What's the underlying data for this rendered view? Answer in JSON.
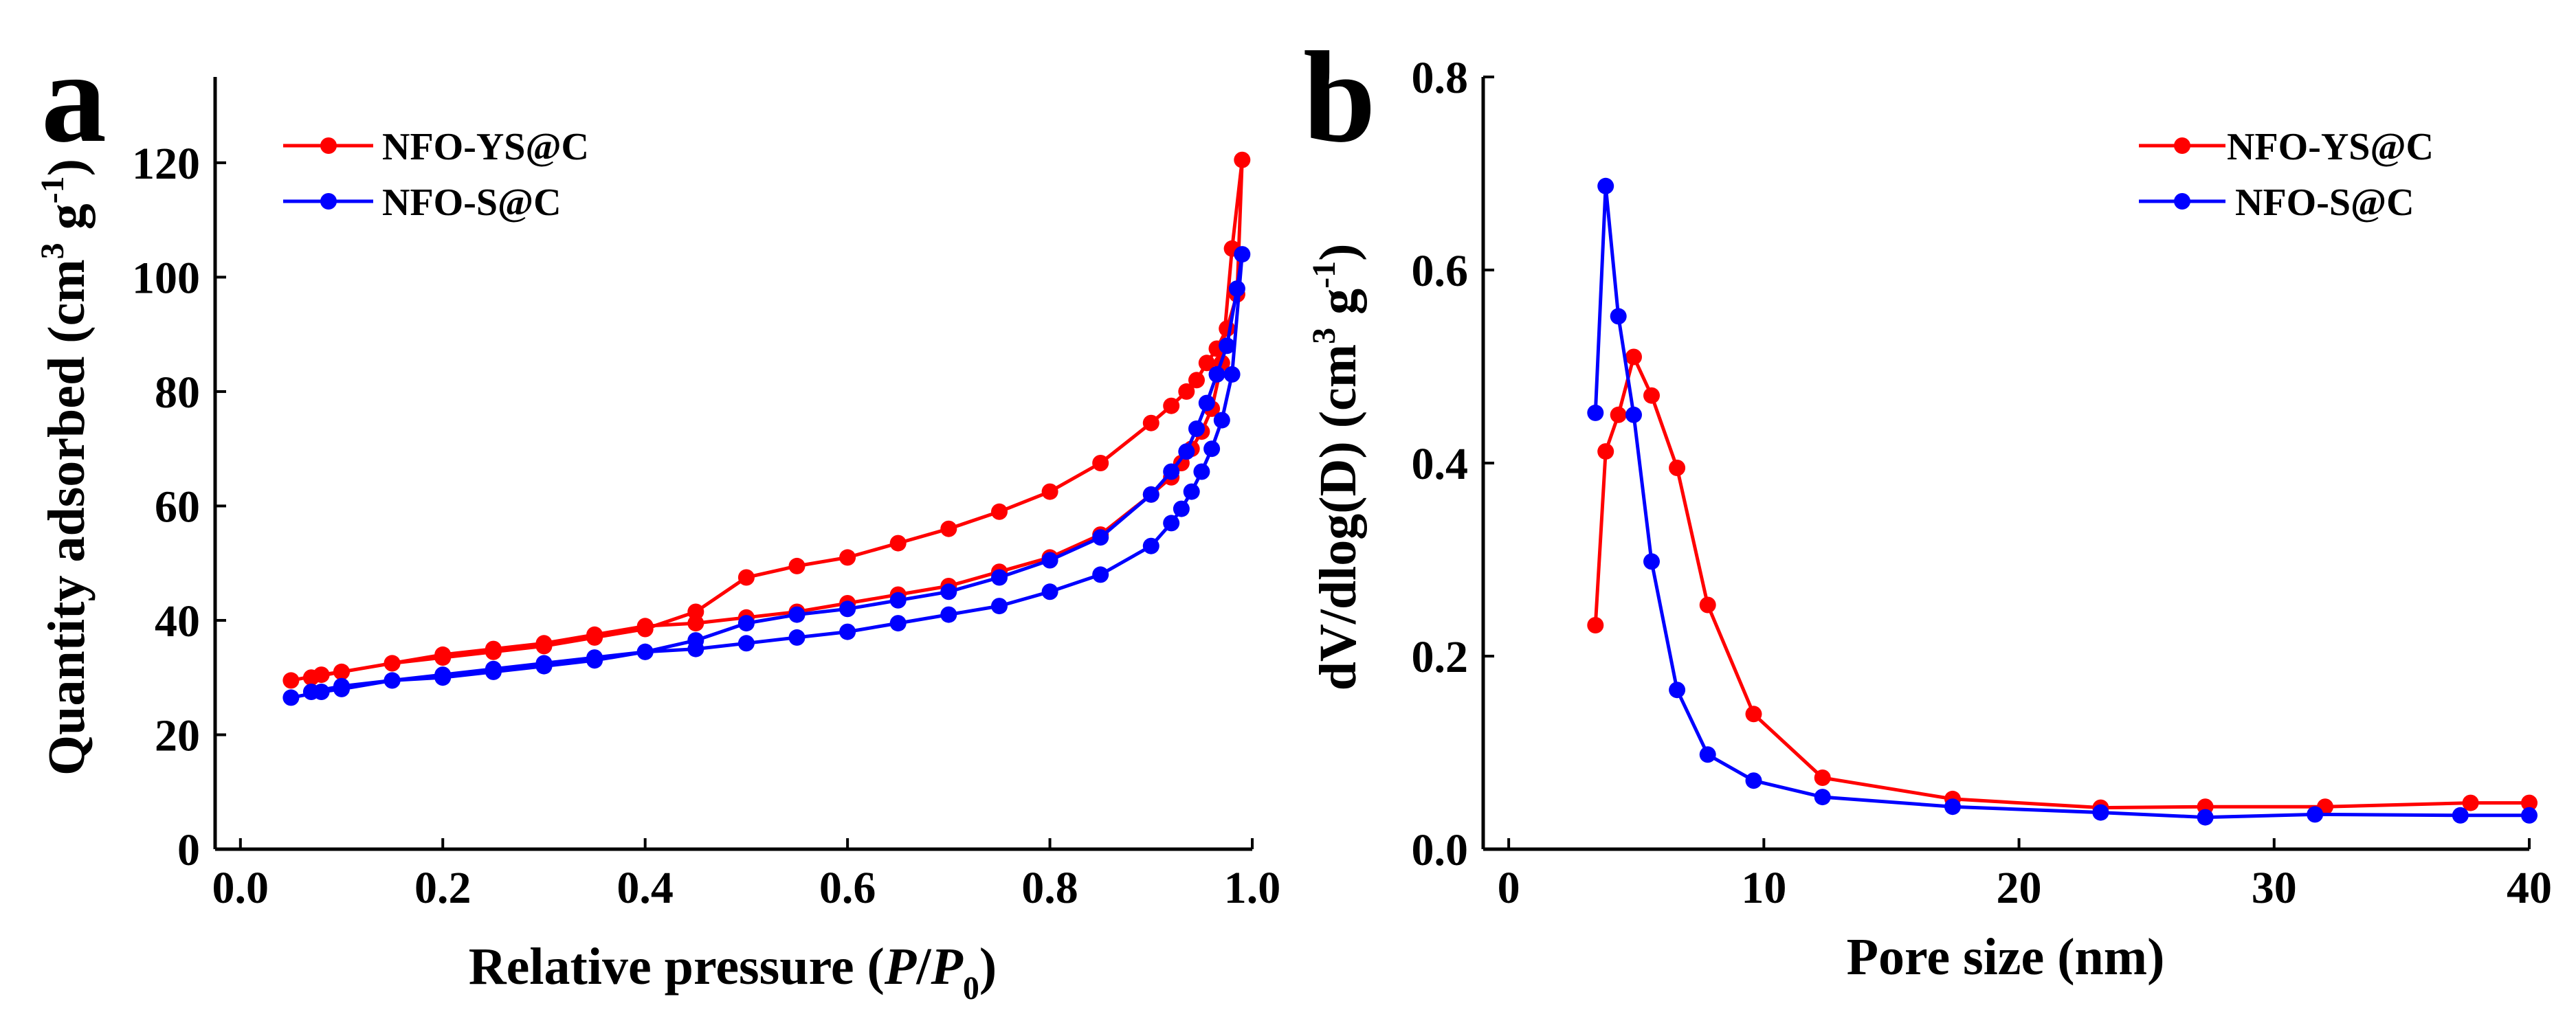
{
  "chart_data": [
    {
      "panel_label": "a",
      "type": "line",
      "xlabel": "Relative pressure (P/P0)",
      "xlabel_parts": {
        "pre": "Relative pressure (",
        "P": "P",
        "slash": "/",
        "P2": "P",
        "sub": "0",
        "post": ")"
      },
      "ylabel": "Quantity adsorbed (cm3 g-1)",
      "ylabel_parts": {
        "main": "Quantity adsorbed (cm",
        "sup1": "3",
        "mid": " g",
        "sup2": "-1",
        "post": ")"
      },
      "xlim": [
        -0.025,
        1.0
      ],
      "ylim": [
        0,
        135
      ],
      "xticks": [
        "0.0",
        "0.2",
        "0.4",
        "0.6",
        "0.8",
        "1.0"
      ],
      "yticks": [
        "0",
        "20",
        "40",
        "60",
        "80",
        "100",
        "120"
      ],
      "legend_position": "top-left",
      "series": [
        {
          "name": "NFO-YS@C",
          "color": "#ff0000",
          "x": [
            0.05,
            0.08,
            0.1,
            0.15,
            0.2,
            0.25,
            0.3,
            0.35,
            0.4,
            0.45,
            0.5,
            0.55,
            0.6,
            0.65,
            0.7,
            0.75,
            0.8,
            0.85,
            0.9,
            0.92,
            0.93,
            0.94,
            0.95,
            0.96,
            0.97,
            0.98,
            0.99,
            0.985,
            0.975,
            0.965,
            0.955,
            0.945,
            0.935,
            0.92,
            0.9,
            0.85,
            0.8,
            0.75,
            0.7,
            0.65,
            0.6,
            0.55,
            0.5,
            0.45,
            0.4,
            0.35,
            0.3,
            0.25,
            0.2,
            0.15,
            0.1,
            0.07
          ],
          "y": [
            29.5,
            30.5,
            31.0,
            32.5,
            34.0,
            35.0,
            36.0,
            37.5,
            39.0,
            39.5,
            40.5,
            41.5,
            43.0,
            44.5,
            46.0,
            48.5,
            51.0,
            55.0,
            62.0,
            65.0,
            67.5,
            70.0,
            73.0,
            77.0,
            85.0,
            105.0,
            120.5,
            97.0,
            91.0,
            87.5,
            85.0,
            82.0,
            80.0,
            77.5,
            74.5,
            67.5,
            62.5,
            59.0,
            56.0,
            53.5,
            51.0,
            49.5,
            47.5,
            41.5,
            38.5,
            37.0,
            35.5,
            34.5,
            33.5,
            32.5,
            31.0,
            30.0
          ]
        },
        {
          "name": "NFO-S@C",
          "color": "#0000ff",
          "x": [
            0.05,
            0.08,
            0.1,
            0.15,
            0.2,
            0.25,
            0.3,
            0.35,
            0.4,
            0.45,
            0.5,
            0.55,
            0.6,
            0.65,
            0.7,
            0.75,
            0.8,
            0.85,
            0.9,
            0.92,
            0.93,
            0.94,
            0.95,
            0.96,
            0.97,
            0.98,
            0.99,
            0.985,
            0.975,
            0.965,
            0.955,
            0.945,
            0.935,
            0.92,
            0.9,
            0.85,
            0.8,
            0.75,
            0.7,
            0.65,
            0.6,
            0.55,
            0.5,
            0.45,
            0.4,
            0.35,
            0.3,
            0.25,
            0.2,
            0.15,
            0.1,
            0.07
          ],
          "y": [
            26.5,
            27.5,
            28.0,
            29.5,
            30.5,
            31.5,
            32.5,
            33.5,
            34.5,
            35.0,
            36.0,
            37.0,
            38.0,
            39.5,
            41.0,
            42.5,
            45.0,
            48.0,
            53.0,
            57.0,
            59.5,
            62.5,
            66.0,
            70.0,
            75.0,
            83.0,
            104.0,
            98.0,
            88.0,
            83.0,
            78.0,
            73.5,
            69.5,
            66.0,
            62.0,
            54.5,
            50.5,
            47.5,
            45.0,
            43.5,
            42.0,
            41.0,
            39.5,
            36.5,
            34.5,
            33.0,
            32.0,
            31.0,
            30.0,
            29.5,
            28.5,
            27.5
          ]
        }
      ]
    },
    {
      "panel_label": "b",
      "type": "line",
      "xlabel": "Pore size (nm)",
      "ylabel": "dV/dlog(D) (cm3 g-1)",
      "ylabel_parts": {
        "main": "dV/dlog(D) (cm",
        "sup1": "3",
        "mid": " g",
        "sup2": "-1",
        "post": ")"
      },
      "xlim": [
        -1,
        40
      ],
      "ylim": [
        0,
        0.8
      ],
      "xticks": [
        "0",
        "10",
        "20",
        "30",
        "40"
      ],
      "yticks": [
        "0.0",
        "0.2",
        "0.4",
        "0.6",
        "0.8"
      ],
      "legend_position": "top-right",
      "series": [
        {
          "name": "NFO-YS@C",
          "color": "#ff0000",
          "x": [
            3.4,
            3.8,
            4.3,
            4.9,
            5.6,
            6.6,
            7.8,
            9.6,
            12.3,
            17.4,
            23.2,
            27.3,
            32.0,
            37.7,
            40.0
          ],
          "y": [
            0.232,
            0.412,
            0.45,
            0.51,
            0.47,
            0.395,
            0.253,
            0.14,
            0.074,
            0.052,
            0.043,
            0.044,
            0.044,
            0.048,
            0.048
          ]
        },
        {
          "name": "NFO-S@C",
          "color": "#0000ff",
          "x": [
            3.4,
            3.8,
            4.3,
            4.9,
            5.6,
            6.6,
            7.8,
            9.6,
            12.3,
            17.4,
            23.2,
            27.3,
            31.6,
            37.3,
            40.0
          ],
          "y": [
            0.452,
            0.687,
            0.552,
            0.45,
            0.298,
            0.165,
            0.098,
            0.071,
            0.054,
            0.044,
            0.038,
            0.033,
            0.036,
            0.035,
            0.035
          ]
        }
      ]
    }
  ]
}
